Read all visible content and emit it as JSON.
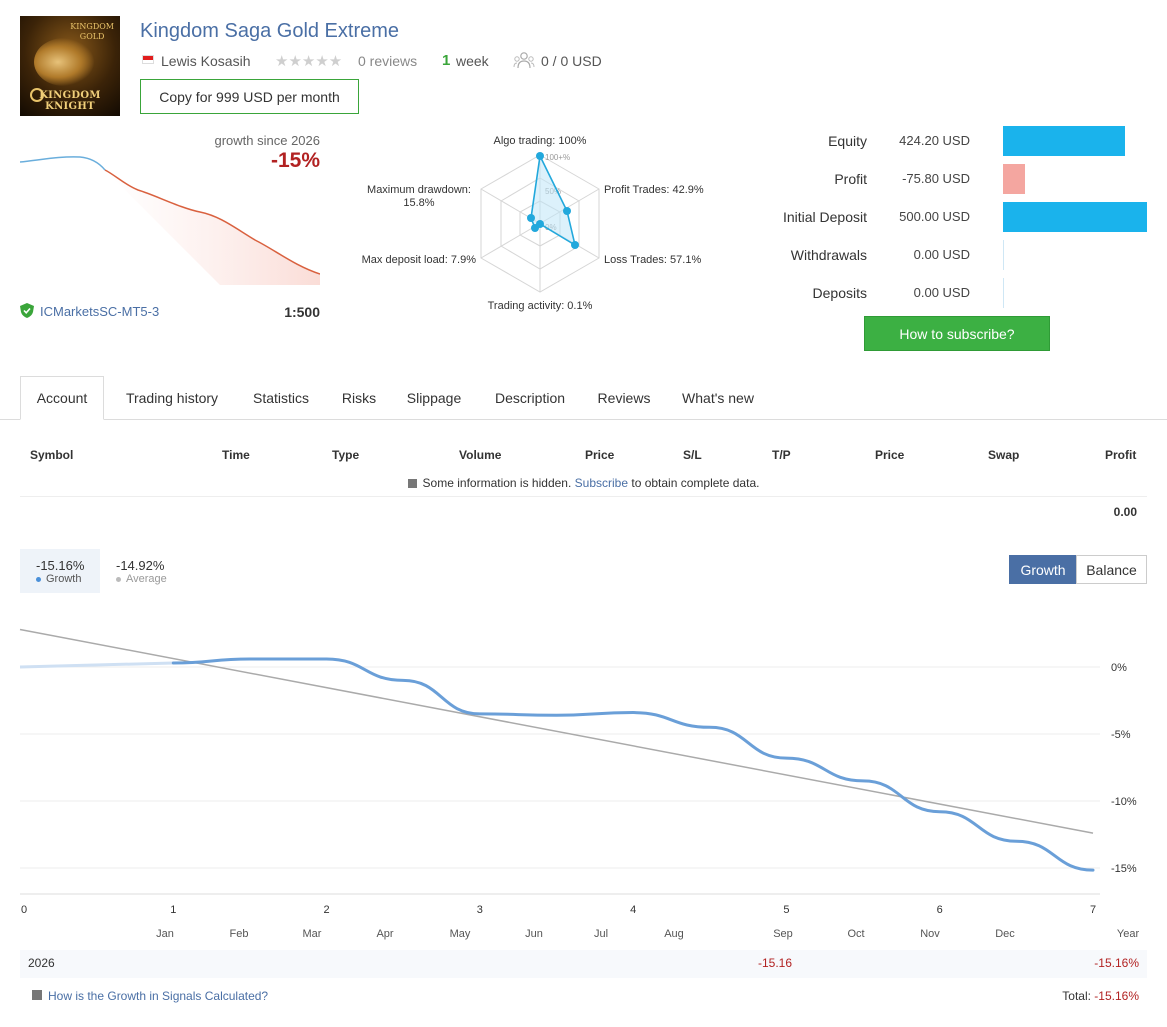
{
  "header": {
    "title": "Kingdom Saga Gold Extreme",
    "author": "Lewis Kosasih",
    "rating_stars": 0,
    "reviews": "0 reviews",
    "weeks_num": "1",
    "weeks_label": "week",
    "subscribers": "0 / 0 USD",
    "copy_button": "Copy for 999 USD per month",
    "avatar_top_text_1": "KINGDOM",
    "avatar_top_text_2": "GOLD",
    "avatar_logo_1": "KINGDOM",
    "avatar_logo_2": "KNIGHT"
  },
  "summary": {
    "growth_label": "growth since 2026",
    "growth_value": "-15%",
    "broker": "ICMarketsSC-MT5-3",
    "leverage": "1:500"
  },
  "radar": {
    "algo": "Algo trading: 100%",
    "profit_trades": "Profit Trades: 42.9%",
    "loss_trades": "Loss Trades: 57.1%",
    "activity": "Trading activity: 0.1%",
    "max_load": "Max deposit load: 7.9%",
    "drawdown_1": "Maximum drawdown:",
    "drawdown_2": "15.8%",
    "tick_100": "100+%",
    "tick_50": "50%",
    "tick_0": "0%"
  },
  "stats": [
    {
      "label": "Equity",
      "value": "424.20 USD",
      "fraction": 0.85,
      "color": "#1ab3ec"
    },
    {
      "label": "Profit",
      "value": "-75.80 USD",
      "fraction": 0.15,
      "color": "#f4a6a0"
    },
    {
      "label": "Initial Deposit",
      "value": "500.00 USD",
      "fraction": 1.0,
      "color": "#1ab3ec"
    },
    {
      "label": "Withdrawals",
      "value": "0.00 USD",
      "fraction": 0,
      "color": "#1ab3ec"
    },
    {
      "label": "Deposits",
      "value": "0.00 USD",
      "fraction": 0,
      "color": "#1ab3ec"
    }
  ],
  "subscribe_button": "How to subscribe?",
  "tabs": [
    "Account",
    "Trading history",
    "Statistics",
    "Risks",
    "Slippage",
    "Description",
    "Reviews",
    "What's new"
  ],
  "active_tab": 0,
  "table": {
    "headers": [
      "Symbol",
      "Time",
      "Type",
      "Volume",
      "Price",
      "S/L",
      "T/P",
      "Price",
      "Swap",
      "Profit"
    ],
    "hidden_prefix": "Some information is hidden.",
    "hidden_link": "Subscribe",
    "hidden_suffix": "to obtain complete data.",
    "total_profit": "0.00"
  },
  "growth_chart": {
    "legend_growth_value": "-15.16%",
    "legend_growth_label": "Growth",
    "legend_average_value": "-14.92%",
    "legend_average_label": "Average",
    "toggle_growth": "Growth",
    "toggle_balance": "Balance",
    "year": "2026",
    "year_month_value": "-15.16",
    "year_total": "-15.16%",
    "help_link": "How is the Growth in Signals Calculated?",
    "total_label": "Total:",
    "total_value": "-15.16%"
  },
  "chart_data": [
    {
      "type": "line",
      "title": "growth since 2026",
      "series": [
        {
          "values": [
            0.2,
            0.4,
            0.1,
            -3.0,
            -5.5,
            -7.8,
            -9.0,
            -11.2,
            -13.8,
            -15.0
          ]
        }
      ]
    },
    {
      "type": "radar",
      "axes": [
        "Algo trading",
        "Profit Trades",
        "Loss Trades",
        "Trading activity",
        "Max deposit load",
        "Maximum drawdown"
      ],
      "values": [
        100,
        42.9,
        57.1,
        0.1,
        7.9,
        15.8
      ]
    },
    {
      "type": "line",
      "x_ticks": [
        "0",
        "1",
        "2",
        "3",
        "4",
        "5",
        "6",
        "7"
      ],
      "month_labels": [
        "Jan",
        "Feb",
        "Mar",
        "Apr",
        "May",
        "Jun",
        "Jul",
        "Aug",
        "Sep",
        "Oct",
        "Nov",
        "Dec",
        "Year"
      ],
      "y_ticks": [
        "0%",
        "-5%",
        "-10%",
        "-15%"
      ],
      "ylim": [
        -16.5,
        3
      ],
      "series": [
        {
          "name": "Growth",
          "color": "#6a9fd8",
          "x": [
            1,
            1.5,
            2,
            2.5,
            3,
            3.5,
            4,
            4.5,
            5,
            5.5,
            6,
            6.5,
            7
          ],
          "y": [
            0.3,
            0.6,
            0.6,
            -1.0,
            -3.5,
            -3.6,
            -3.4,
            -4.5,
            -6.8,
            -8.5,
            -10.8,
            -13.0,
            -15.16
          ]
        },
        {
          "name": "Average",
          "color": "#aaaaaa",
          "x": [
            0,
            7
          ],
          "y": [
            2.8,
            -12.4
          ]
        }
      ]
    }
  ]
}
